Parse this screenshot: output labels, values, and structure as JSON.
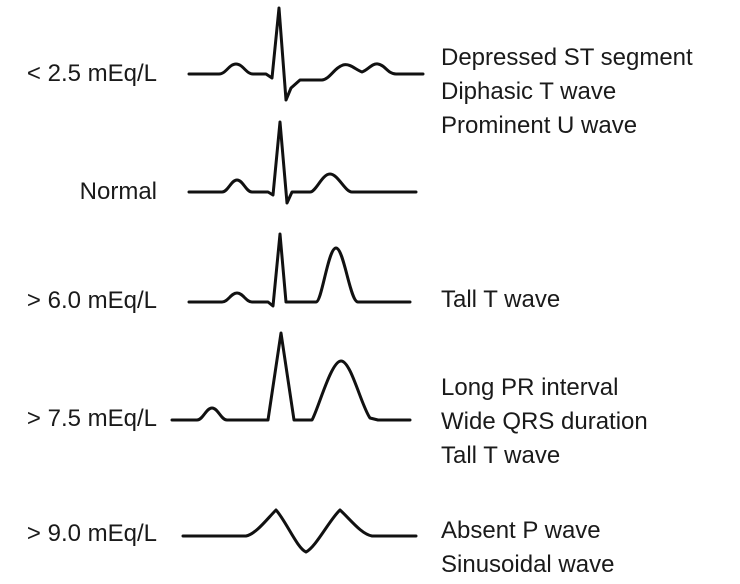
{
  "rows": [
    {
      "level": "< 2.5 mEq/L",
      "notes": [
        "Depressed ST segment",
        "Diphasic T wave",
        "Prominent U wave"
      ]
    },
    {
      "level": "Normal",
      "notes": []
    },
    {
      "level": "> 6.0 mEq/L",
      "notes": [
        "Tall T wave"
      ]
    },
    {
      "level": "> 7.5 mEq/L",
      "notes": [
        "Long PR interval",
        "Wide QRS duration",
        "Tall T wave"
      ]
    },
    {
      "level": "> 9.0 mEq/L",
      "notes": [
        "Absent P wave",
        "Sinusoidal wave"
      ]
    }
  ]
}
